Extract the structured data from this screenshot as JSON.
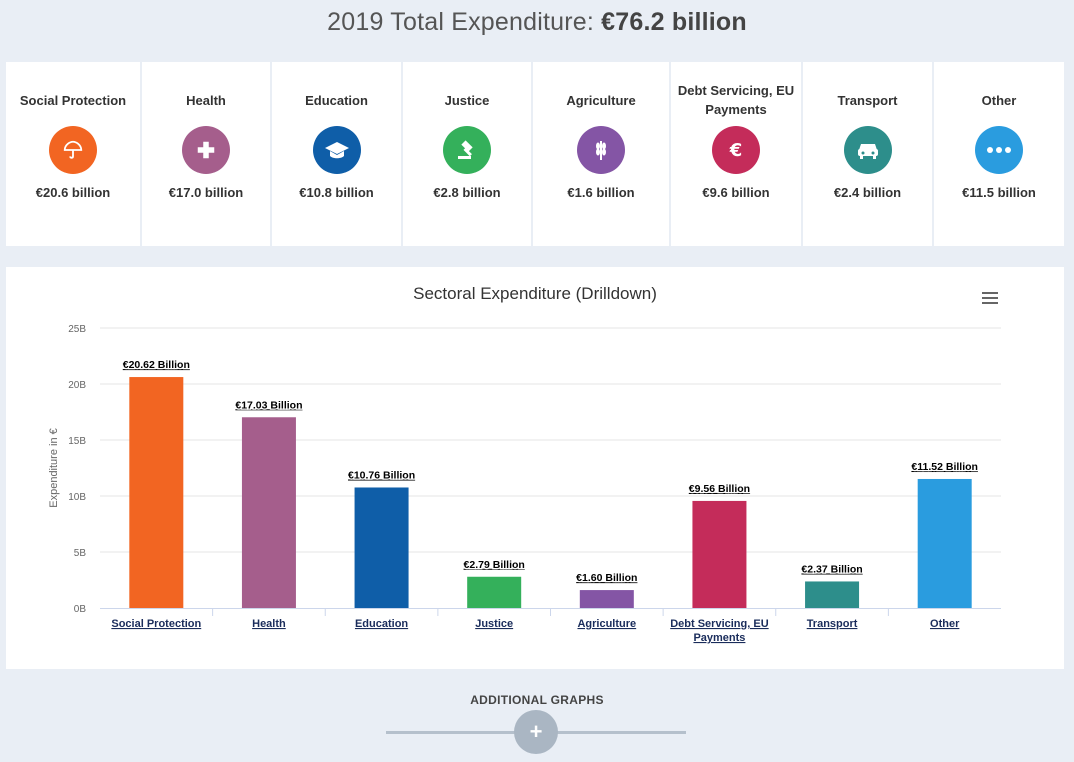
{
  "header": {
    "title_prefix": "2019 Total Expenditure: ",
    "title_value": "€76.2 billion"
  },
  "cards": [
    {
      "label": "Social Protection",
      "icon": "umbrella-icon",
      "color": "#f26522",
      "value": "€20.6 billion"
    },
    {
      "label": "Health",
      "icon": "plus-icon",
      "color": "#a55e8c",
      "value": "€17.0 billion"
    },
    {
      "label": "Education",
      "icon": "graduation-cap-icon",
      "color": "#0f5ea8",
      "value": "€10.8 billion"
    },
    {
      "label": "Justice",
      "icon": "gavel-icon",
      "color": "#34b05b",
      "value": "€2.8 billion"
    },
    {
      "label": "Agriculture",
      "icon": "wheat-icon",
      "color": "#8455a5",
      "value": "€1.6 billion"
    },
    {
      "label": "Debt Servicing, EU Payments",
      "icon": "euro-icon",
      "color": "#c42c5a",
      "value": "€9.6 billion"
    },
    {
      "label": "Transport",
      "icon": "car-icon",
      "color": "#2d8e8b",
      "value": "€2.4 billion"
    },
    {
      "label": "Other",
      "icon": "more-icon",
      "color": "#2a9cdf",
      "value": "€11.5 billion"
    }
  ],
  "chart_data": {
    "type": "bar",
    "title": "Sectoral Expenditure (Drilldown)",
    "ylabel": "Expenditure in €",
    "xlabel": "",
    "ylim": [
      0,
      25
    ],
    "yticks": [
      0,
      5,
      10,
      15,
      20,
      25
    ],
    "ytick_labels": [
      "0B",
      "5B",
      "10B",
      "15B",
      "20B",
      "25B"
    ],
    "categories": [
      "Social Protection",
      "Health",
      "Education",
      "Justice",
      "Agriculture",
      "Debt Servicing, EU Payments",
      "Transport",
      "Other"
    ],
    "values": [
      20.62,
      17.03,
      10.76,
      2.79,
      1.6,
      9.56,
      2.37,
      11.52
    ],
    "data_labels": [
      "€20.62 Billion",
      "€17.03 Billion",
      "€10.76 Billion",
      "€2.79 Billion",
      "€1.60 Billion",
      "€9.56 Billion",
      "€2.37 Billion",
      "€11.52 Billion"
    ],
    "colors": [
      "#f26522",
      "#a55e8c",
      "#0f5ea8",
      "#34b05b",
      "#8455a5",
      "#c42c5a",
      "#2d8e8b",
      "#2a9cdf"
    ],
    "grid": true,
    "legend": "none"
  },
  "additional": {
    "label": "ADDITIONAL GRAPHS",
    "button_icon": "plus-icon",
    "button_symbol": "+"
  }
}
